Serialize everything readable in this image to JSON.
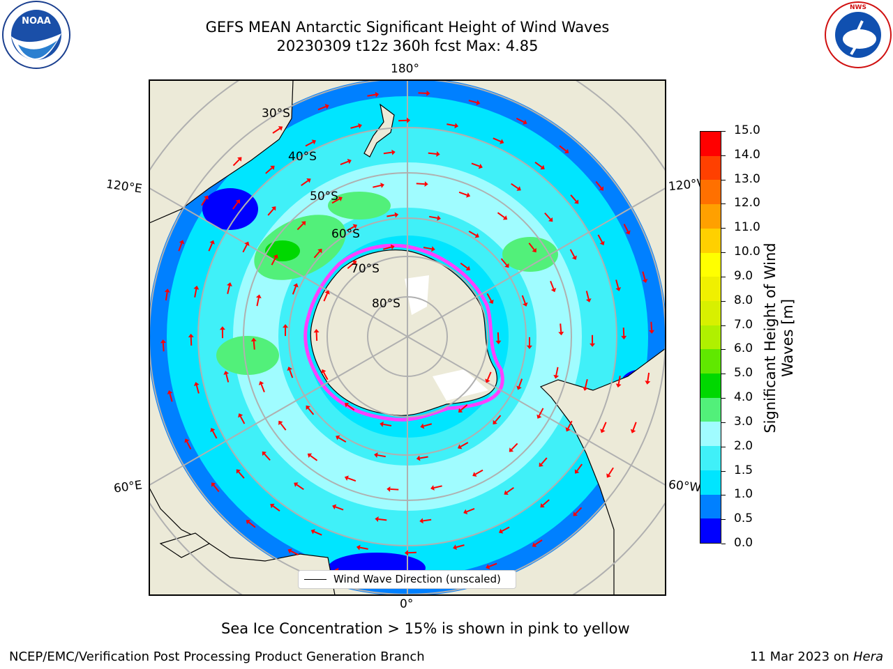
{
  "header": {
    "title_line1": "GEFS MEAN Antarctic Significant Height of Wind Waves",
    "title_line2": "20230309 t12z 360h fcst   Max: 4.85"
  },
  "logos": {
    "left": "NOAA",
    "left_ring_text": "NATIONAL OCEANIC AND ATMOSPHERIC ADMINISTRATION · U.S. DEPARTMENT OF COMMERCE",
    "right_ring_text": "NATIONAL WEATHER SERVICE"
  },
  "map": {
    "projection": "south-polar-stereographic",
    "longitude_labels": {
      "top": "180°",
      "bottom": "0°",
      "upper_left": "120°E",
      "lower_left": "60°E",
      "upper_right": "120°W",
      "lower_right": "60°W"
    },
    "latitude_labels": [
      "30°S",
      "40°S",
      "50°S",
      "60°S",
      "70°S",
      "80°S"
    ],
    "legend_label": "Wind Wave Direction (unscaled)",
    "colors": {
      "land": "#ecead8",
      "ocean_0_0.5": "#0000ff",
      "ocean_0.5_1.0": "#0080ff",
      "ocean_1.0_1.5": "#00e5ff",
      "ocean_1.5_2.0": "#40f0f8",
      "ocean_2.0_3.0": "#a0fcff",
      "ocean_3.0_4.0": "#52f07a",
      "ocean_4.0_5.0": "#00d800",
      "arrow": "#ff0000",
      "sea_ice_edge": "#ff40ff"
    }
  },
  "colorbar": {
    "title": "Significant Height of Wind Waves [m]",
    "title_line1": "Significant Height of Wind",
    "title_line2": "Waves [m]",
    "ticks": [
      "0.0",
      "0.5",
      "1.0",
      "1.5",
      "2.0",
      "3.0",
      "4.0",
      "5.0",
      "6.0",
      "7.0",
      "8.0",
      "9.0",
      "10.0",
      "11.0",
      "12.0",
      "13.0",
      "14.0",
      "15.0"
    ],
    "colors": [
      "#0000ff",
      "#0080ff",
      "#00e5ff",
      "#40f0f8",
      "#a0fcff",
      "#52f07a",
      "#00d800",
      "#60e800",
      "#b0f000",
      "#d8f000",
      "#f0f000",
      "#ffff00",
      "#ffd000",
      "#ffa000",
      "#ff7000",
      "#ff4000",
      "#ff0000"
    ]
  },
  "note": "Sea Ice Concentration > 15% is shown in pink to yellow",
  "footer": {
    "left": "NCEP/EMC/Verification Post Processing Product Generation Branch",
    "right_date": "11 Mar 2023 on ",
    "right_machine": "Hera"
  }
}
